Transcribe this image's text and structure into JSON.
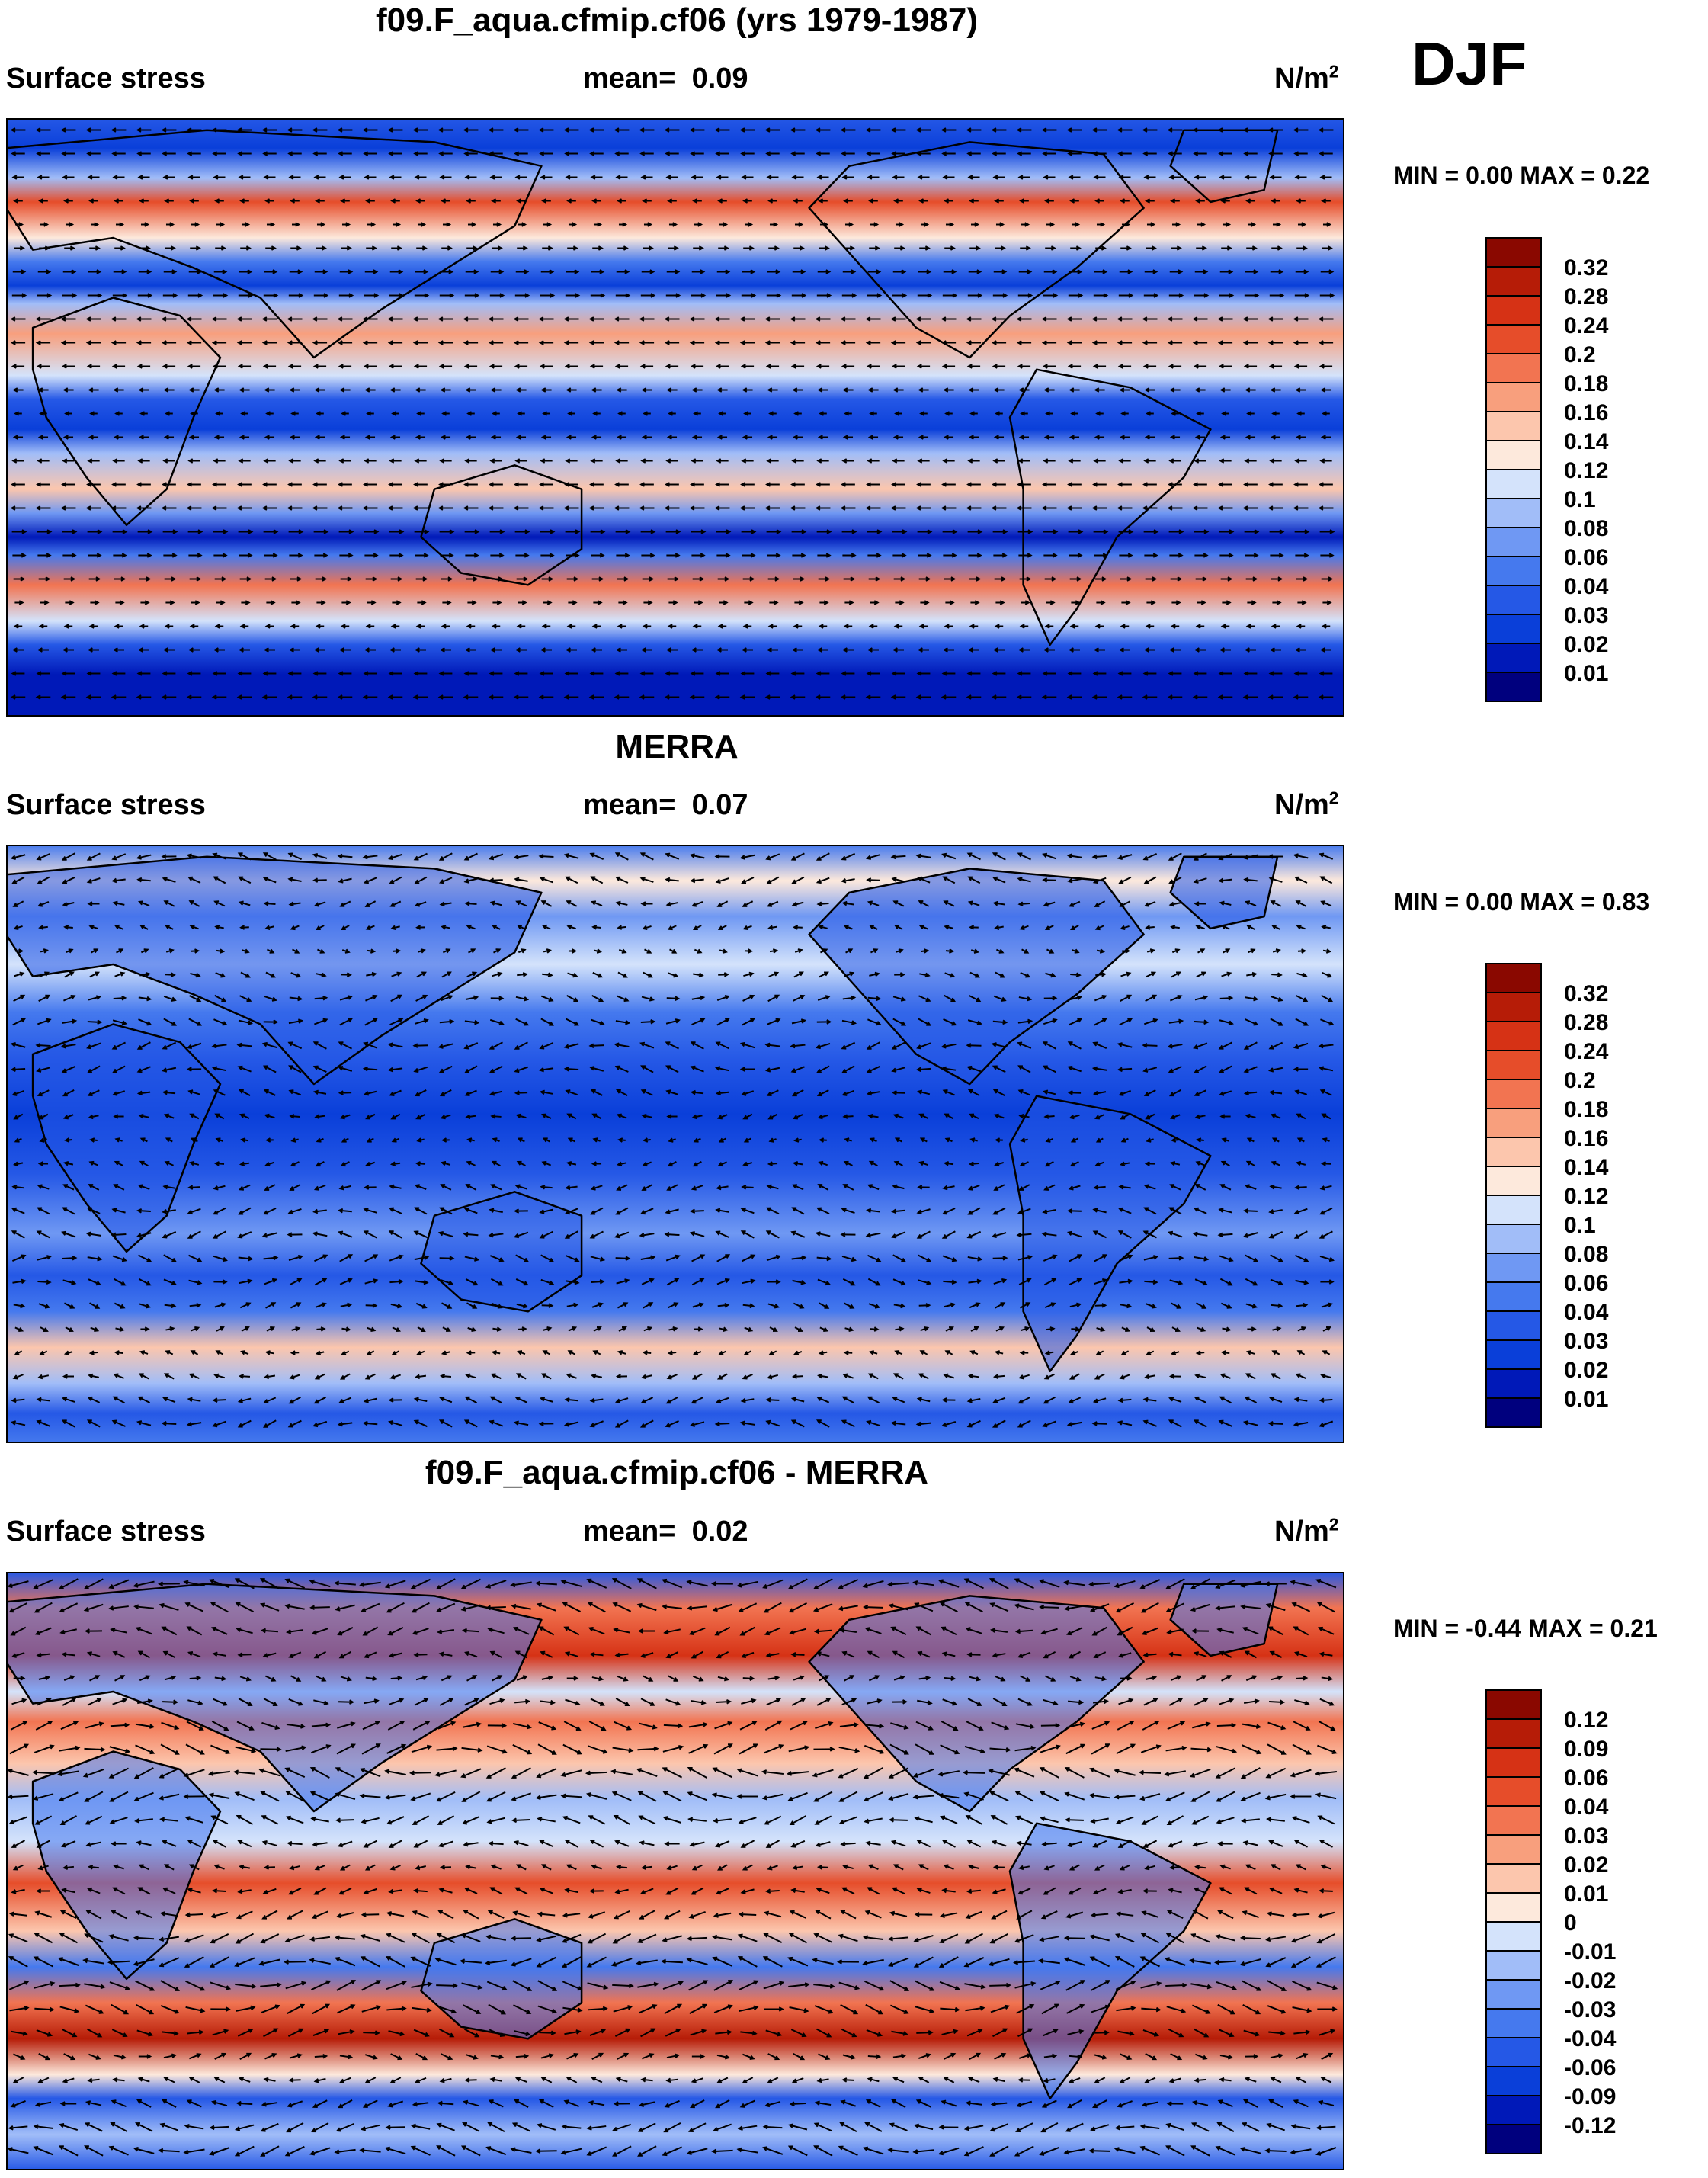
{
  "season": "DJF",
  "colors": {
    "seq": [
      "#00007e",
      "#0019b8",
      "#0a3fd9",
      "#2558e6",
      "#4579ee",
      "#6f98f3",
      "#a1bdf8",
      "#d4e3fb",
      "#fde9dc",
      "#fcc6ad",
      "#f89f7d",
      "#f27451",
      "#e64d2a",
      "#d63215",
      "#b61c07",
      "#8a0800"
    ],
    "diff": [
      "#00007e",
      "#0019b8",
      "#0a3fd9",
      "#2558e6",
      "#4579ee",
      "#6f98f3",
      "#a1bdf8",
      "#d4e3fb",
      "#fde9dc",
      "#fcc6ad",
      "#f89f7d",
      "#f27451",
      "#e64d2a",
      "#d63215",
      "#b61c07",
      "#8a0800"
    ]
  },
  "panels": [
    {
      "title": "f09.F_aqua.cfmip.cf06 (yrs 1979-1987)",
      "variable": "Surface stress",
      "mean_label": "mean=",
      "mean_value": "0.09",
      "units": "N/m",
      "units_exp": "2",
      "min_max": "MIN =    0.00 MAX =    0.22",
      "colorbar_labels": [
        "0.32",
        "0.28",
        "0.24",
        "0.2",
        "0.18",
        "0.16",
        "0.14",
        "0.12",
        "0.1",
        "0.08",
        "0.06",
        "0.04",
        "0.03",
        "0.02",
        "0.01"
      ]
    },
    {
      "title": "MERRA",
      "variable": "Surface stress",
      "mean_label": "mean=",
      "mean_value": "0.07",
      "units": "N/m",
      "units_exp": "2",
      "min_max": "MIN =    0.00 MAX =    0.83",
      "colorbar_labels": [
        "0.32",
        "0.28",
        "0.24",
        "0.2",
        "0.18",
        "0.16",
        "0.14",
        "0.12",
        "0.1",
        "0.08",
        "0.06",
        "0.04",
        "0.03",
        "0.02",
        "0.01"
      ]
    },
    {
      "title": "f09.F_aqua.cfmip.cf06 - MERRA",
      "variable": "Surface stress",
      "mean_label": "mean=",
      "mean_value": "0.02",
      "units": "N/m",
      "units_exp": "2",
      "min_max": "MIN =  -0.44 MAX =    0.21",
      "colorbar_labels": [
        "0.12",
        "0.09",
        "0.06",
        "0.04",
        "0.03",
        "0.02",
        "0.01",
        "0",
        "-0.01",
        "-0.02",
        "-0.03",
        "-0.04",
        "-0.06",
        "-0.09",
        "-0.12"
      ]
    }
  ]
}
